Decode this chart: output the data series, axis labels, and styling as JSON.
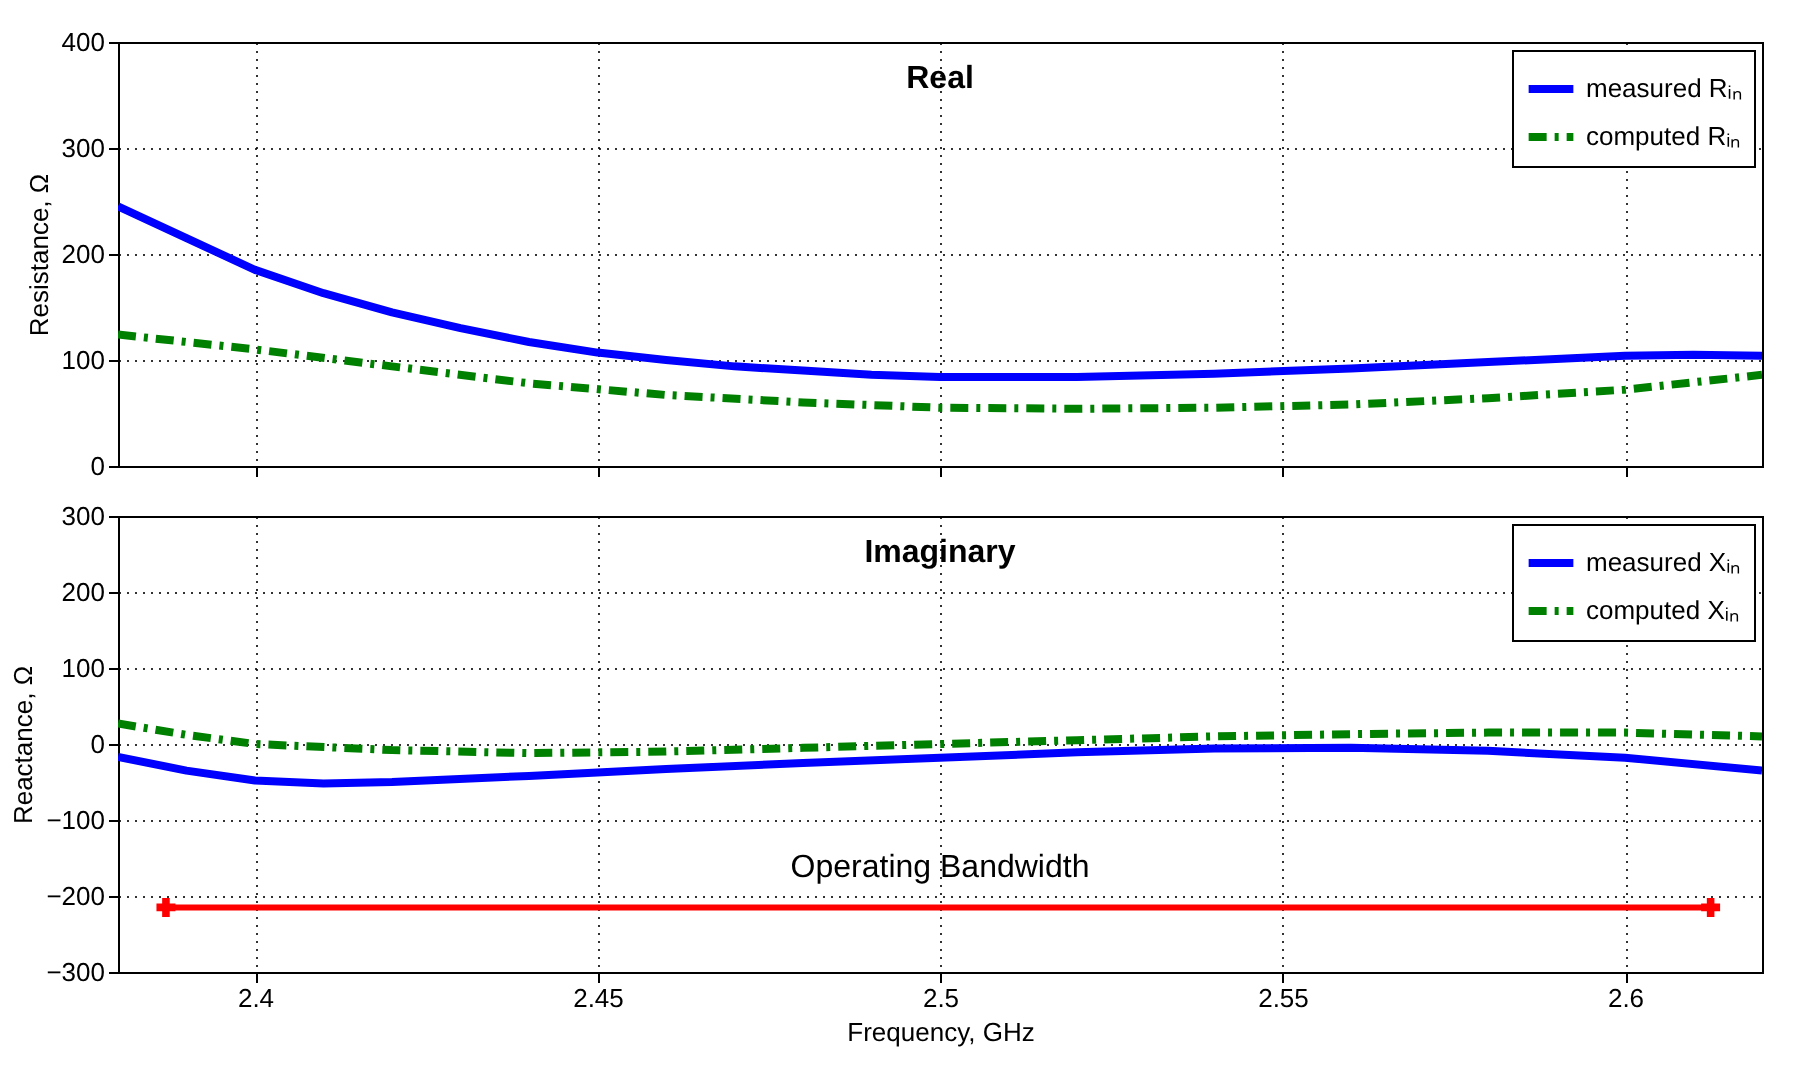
{
  "chart_data": [
    {
      "type": "line",
      "title": "Real",
      "ylabel": "Resistance, Ω",
      "xlim": [
        2.38,
        2.62
      ],
      "xticks": [
        2.4,
        2.45,
        2.5,
        2.55,
        2.6
      ],
      "ylim": [
        0,
        400
      ],
      "yticks": [
        0,
        100,
        200,
        300,
        400
      ],
      "grid": true,
      "legend": "top right",
      "tick_labels": "y",
      "series": [
        {
          "name": "measured Rᵢₙ",
          "color": "#0000ff",
          "line_style": "solid",
          "x": [
            2.38,
            2.39,
            2.4,
            2.41,
            2.42,
            2.43,
            2.44,
            2.45,
            2.46,
            2.47,
            2.48,
            2.49,
            2.5,
            2.52,
            2.54,
            2.56,
            2.58,
            2.6,
            2.61,
            2.62
          ],
          "values": [
            245,
            215,
            185,
            163,
            145,
            130,
            117,
            107,
            100,
            94,
            90,
            86,
            84,
            84,
            87,
            92,
            98,
            104,
            105,
            104
          ]
        },
        {
          "name": "computed Rᵢₙ",
          "color": "#008000",
          "line_style": "dashed",
          "x": [
            2.38,
            2.4,
            2.42,
            2.44,
            2.46,
            2.48,
            2.5,
            2.52,
            2.54,
            2.56,
            2.58,
            2.6,
            2.62
          ],
          "values": [
            124,
            110,
            94,
            78,
            67,
            60,
            55,
            54,
            55,
            58,
            64,
            72,
            86
          ]
        }
      ]
    },
    {
      "type": "line",
      "title": "Imaginary",
      "xlabel": "Frequency, GHz",
      "ylabel": "Reactance, Ω",
      "xlim": [
        2.38,
        2.62
      ],
      "xticks": [
        2.4,
        2.45,
        2.5,
        2.55,
        2.6
      ],
      "ylim": [
        -300,
        300
      ],
      "yticks": [
        -300,
        -200,
        -100,
        0,
        100,
        200,
        300
      ],
      "grid": true,
      "legend": "top right",
      "series": [
        {
          "name": "measured Xᵢₙ",
          "color": "#0000ff",
          "line_style": "solid",
          "x": [
            2.38,
            2.39,
            2.4,
            2.41,
            2.42,
            2.44,
            2.46,
            2.48,
            2.5,
            2.52,
            2.54,
            2.56,
            2.58,
            2.6,
            2.62
          ],
          "values": [
            -17,
            -35,
            -48,
            -52,
            -50,
            -42,
            -33,
            -25,
            -18,
            -11,
            -6,
            -5,
            -9,
            -18,
            -35
          ]
        },
        {
          "name": "computed Xᵢₙ",
          "color": "#008000",
          "line_style": "dashed",
          "x": [
            2.38,
            2.39,
            2.4,
            2.42,
            2.44,
            2.46,
            2.48,
            2.5,
            2.52,
            2.54,
            2.56,
            2.58,
            2.6,
            2.62
          ],
          "values": [
            27,
            12,
            0,
            -8,
            -12,
            -10,
            -5,
            0,
            5,
            10,
            13,
            15,
            15,
            10
          ]
        },
        {
          "color": "#ff0000",
          "line_style": "solid",
          "marker": "cross",
          "x": [
            2.387,
            2.6125
          ],
          "values": [
            -215,
            -215
          ]
        }
      ],
      "annotations": [
        {
          "text": "Operating Bandwidth",
          "x": 2.5,
          "y": -215
        }
      ]
    }
  ]
}
